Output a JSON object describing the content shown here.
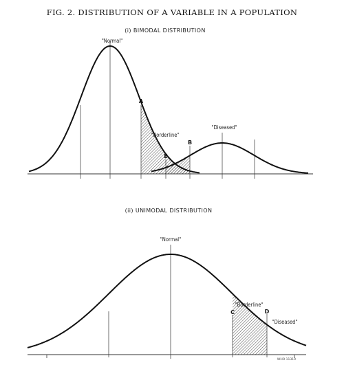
{
  "figure": {
    "title": "FIG. 2.  DISTRIBUTION OF A VARIABLE IN A POPULATION",
    "reference": "WHO 11310"
  },
  "bimodal": {
    "subtitle": "(i) BIMODAL DISTRIBUTION",
    "labels": {
      "normal": "\"Normal\"",
      "diseased": "\"Diseased\"",
      "borderline": "\"Borderline\""
    },
    "points": {
      "a": "A",
      "b": "B",
      "e": "E"
    }
  },
  "unimodal": {
    "subtitle": "(ii) UNIMODAL DISTRIBUTION",
    "labels": {
      "normal": "\"Normal\"",
      "borderline": "\"Borderline\"",
      "diseased": "\"Diseased\""
    },
    "points": {
      "c": "C",
      "d": "D"
    }
  }
}
